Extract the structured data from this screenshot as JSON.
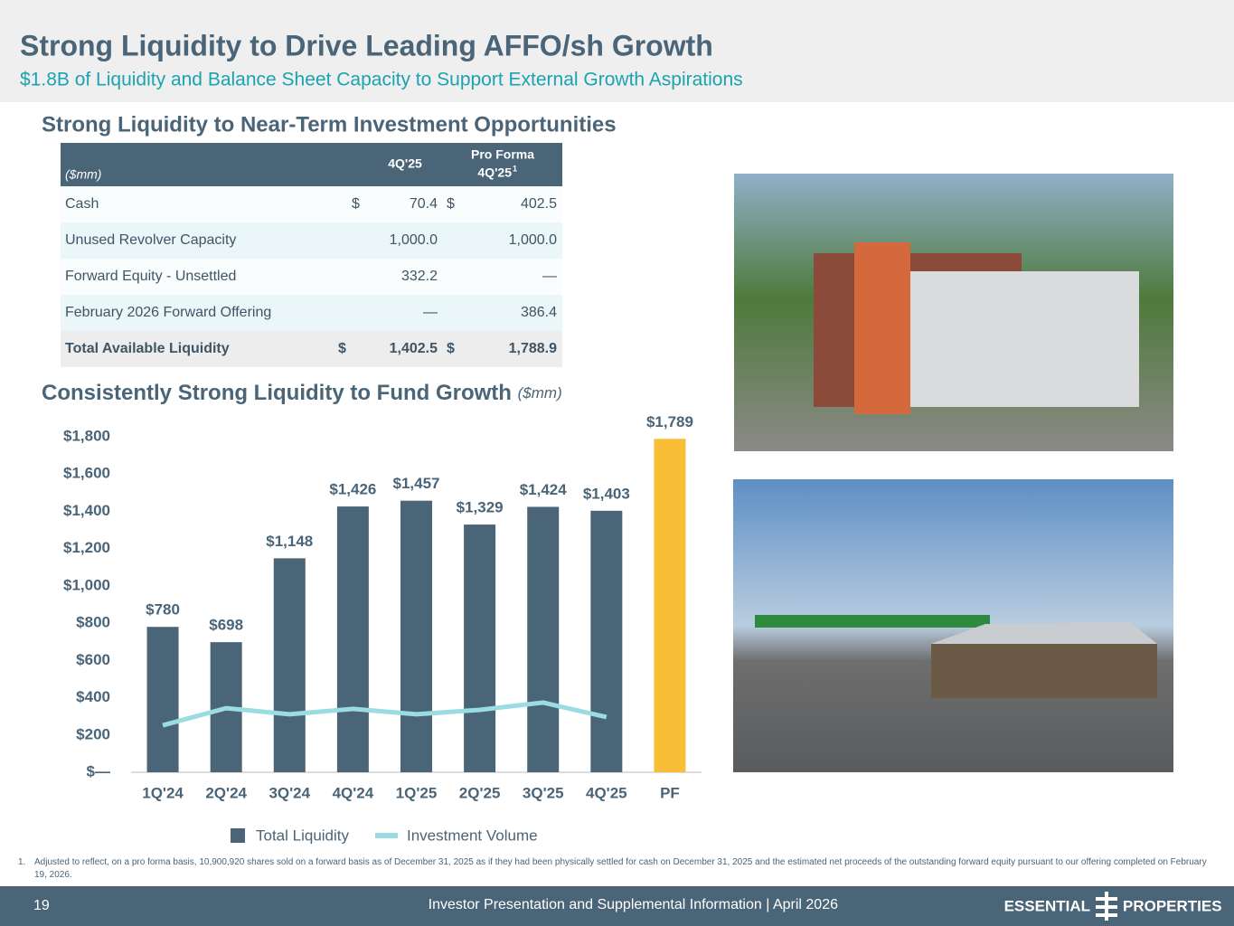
{
  "header": {
    "title": "Strong Liquidity to Drive Leading AFFO/sh Growth",
    "subtitle": "$1.8B of Liquidity and Balance Sheet Capacity to Support External Growth Aspirations"
  },
  "table": {
    "title": "Strong Liquidity to Near-Term Investment Opportunities",
    "unit": "($mm)",
    "columns": [
      "4Q'25",
      "Pro Forma",
      "4Q'25"
    ],
    "column_note": "1",
    "rows": [
      {
        "label": "Cash",
        "q4_symbol": "$",
        "q4": "70.4",
        "pf_symbol": "$",
        "pf": "402.5"
      },
      {
        "label": "Unused Revolver Capacity",
        "q4": "1,000.0",
        "pf": "1,000.0"
      },
      {
        "label": "Forward Equity - Unsettled",
        "q4": "332.2",
        "pf": "—"
      },
      {
        "label": "February 2026 Forward Offering",
        "q4": "—",
        "pf": "386.4"
      },
      {
        "label": "Total Available Liquidity",
        "q4_symbol": "$",
        "q4": "1,402.5",
        "pf_symbol": "$",
        "pf": "1,788.9"
      }
    ]
  },
  "chart_data": {
    "type": "bar",
    "title": "Consistently Strong Liquidity to Fund Growth",
    "subtitle": "($mm)",
    "categories": [
      "1Q'24",
      "2Q'24",
      "3Q'24",
      "4Q'24",
      "1Q'25",
      "2Q'25",
      "3Q'25",
      "4Q'25",
      "PF"
    ],
    "series": [
      {
        "name": "Total Liquidity",
        "type": "bar",
        "color": "#4a6478",
        "point_colors": [
          "#4a6478",
          "#4a6478",
          "#4a6478",
          "#4a6478",
          "#4a6478",
          "#4a6478",
          "#4a6478",
          "#4a6478",
          "#f9bd38"
        ],
        "values": [
          780,
          698,
          1148,
          1426,
          1457,
          1329,
          1424,
          1403,
          1789
        ],
        "value_labels": [
          "$780",
          "$698",
          "$1,148",
          "$1,426",
          "$1,457",
          "$1,329",
          "$1,424",
          "$1,403",
          "$1,789"
        ]
      },
      {
        "name": "Investment Volume",
        "type": "line",
        "color": "#99dde3",
        "values": [
          252,
          344,
          311,
          340,
          311,
          335,
          374,
          296,
          null
        ]
      }
    ],
    "ylim": [
      0,
      1800
    ],
    "yticks": [
      {
        "value": 0,
        "label": "$—"
      },
      {
        "value": 200,
        "label": "$200"
      },
      {
        "value": 400,
        "label": "$400"
      },
      {
        "value": 600,
        "label": "$600"
      },
      {
        "value": 800,
        "label": "$800"
      },
      {
        "value": 1000,
        "label": "$1,000"
      },
      {
        "value": 1200,
        "label": "$1,200"
      },
      {
        "value": 1400,
        "label": "$1,400"
      },
      {
        "value": 1600,
        "label": "$1,600"
      },
      {
        "value": 1800,
        "label": "$1,800"
      }
    ],
    "grid": false,
    "legend": "bottom"
  },
  "footnote": {
    "marker": "1.",
    "text": "Adjusted to reflect, on a pro forma basis, 10,900,920 shares sold on a forward basis as of December 31, 2025 as if they had been physically settled for cash on December 31, 2025 and the estimated net proceeds of the outstanding forward equity pursuant to our offering completed on February 19, 2026."
  },
  "footer": {
    "page": "19",
    "text": "Investor Presentation and Supplemental Information |  April 2026",
    "logo_left": "ESSENTIAL",
    "logo_right": "PROPERTIES"
  }
}
